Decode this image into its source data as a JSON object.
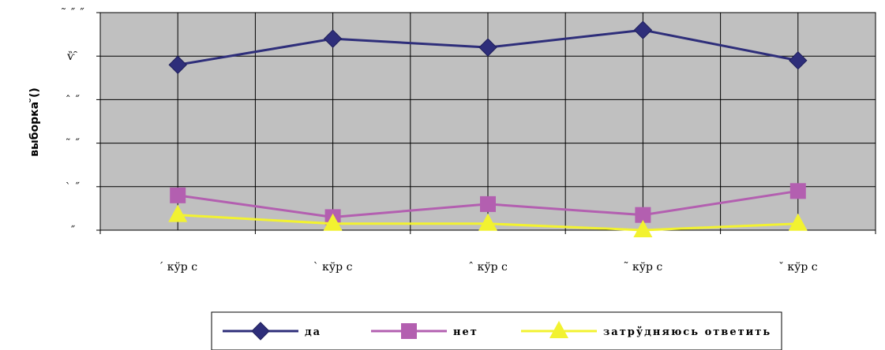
{
  "chart_data": {
    "type": "line",
    "title": "",
    "xlabel": "",
    "ylabel": "выборка ̆()",
    "categories": [
      "´ кўр с",
      "` кўр с",
      "ˆ кўр с",
      "˜ кўр с",
      "ˇ кўр с"
    ],
    "y_tick_labels": [
      "˜ ˝ ˝",
      "ѷ ̑",
      "ˆ ˝",
      "˜ ˝",
      "` ˝",
      "˝"
    ],
    "ylim": [
      0,
      100
    ],
    "grid": true,
    "legend_position": "bottom",
    "series": [
      {
        "name": "да",
        "color": "#2e2e7a",
        "marker": "diamond",
        "values": [
          76,
          88,
          84,
          92,
          78
        ]
      },
      {
        "name": "нет",
        "color": "#b35fb0",
        "marker": "square",
        "values": [
          16,
          6,
          12,
          7,
          18
        ]
      },
      {
        "name": "затрўдняюсь ответить",
        "color": "#f2f230",
        "marker": "triangle",
        "values": [
          7,
          3,
          3,
          0,
          3
        ]
      }
    ]
  }
}
